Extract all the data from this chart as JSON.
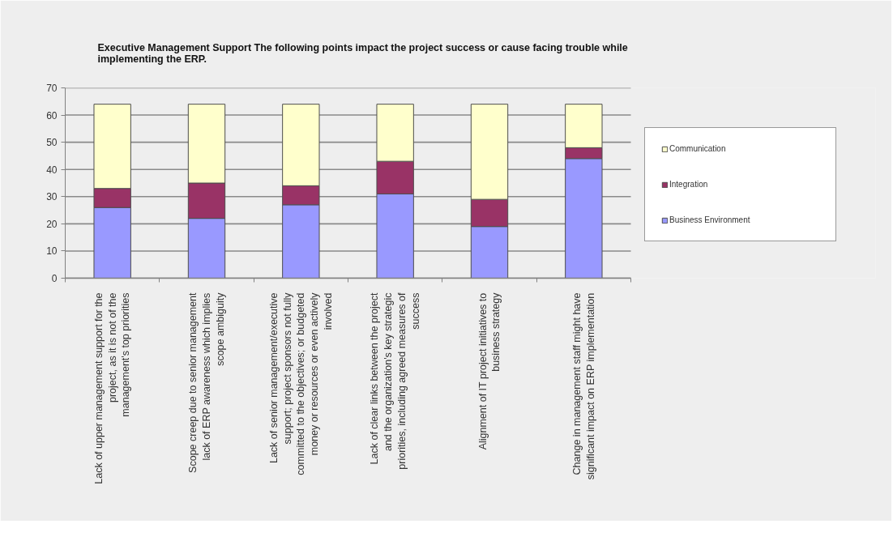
{
  "chart_data": {
    "type": "bar",
    "stacked": true,
    "title": "Executive Management Support The following points impact the project success or cause facing trouble while implementing the ERP.",
    "categories": [
      "Lack of upper management support for the project, as it is not of the management's top priorities",
      "Scope creep due to senior management lack of ERP awareness which implies scope ambiguity",
      "Lack of senior management/executive support; project sponsors not fully committed to the objectives; or budgeted money or resources or even actively involved",
      "Lack of clear links between the project and the organization's key strategic priorities, including agreed measures of success",
      "Alignment of IT project initiatives to business strategy",
      "Change in management staff might have significant impact on ERP implementation"
    ],
    "series": [
      {
        "name": "Business Environment",
        "color": "#9999ff",
        "values": [
          26,
          22,
          27,
          31,
          19,
          44
        ]
      },
      {
        "name": "Integration",
        "color": "#993366",
        "values": [
          7,
          13,
          7,
          12,
          10,
          4
        ]
      },
      {
        "name": "Communication",
        "color": "#ffffcc",
        "values": [
          31,
          29,
          30,
          21,
          35,
          16
        ]
      }
    ],
    "ylim": [
      0,
      70
    ],
    "yticks": [
      0,
      10,
      20,
      30,
      40,
      50,
      60,
      70
    ],
    "grid": "y",
    "legend": "right"
  }
}
